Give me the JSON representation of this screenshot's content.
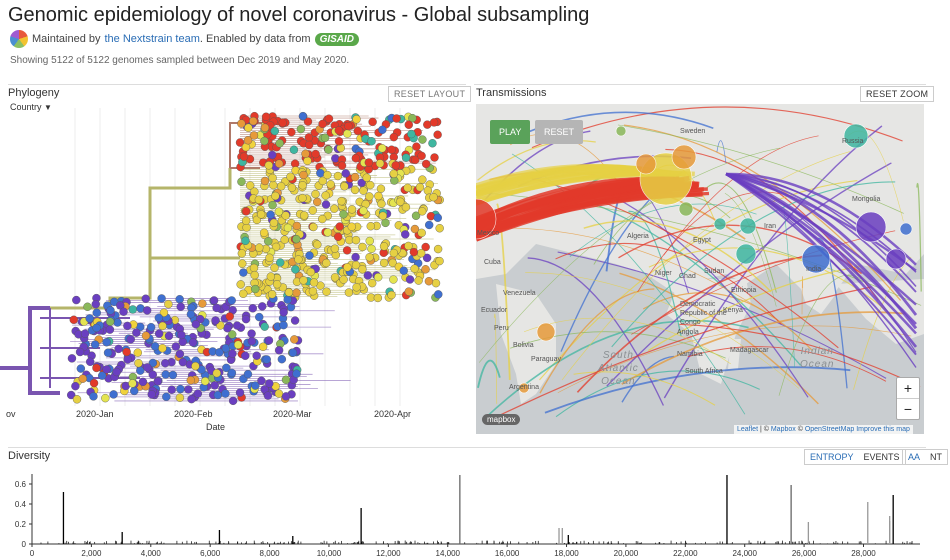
{
  "header": {
    "title": "Genomic epidemiology of novel coronavirus - Global subsampling",
    "maintained_prefix": "Maintained by",
    "maintainer_link": "the Nextstrain team",
    "enabled_text": ". Enabled by data from",
    "gisaid": "GISAID",
    "showing": "Showing 5122 of 5122 genomes sampled between Dec 2019 and May 2020."
  },
  "phylogeny": {
    "title": "Phylogeny",
    "reset_layout": "RESET LAYOUT",
    "color_by": "Country",
    "x_ticks": [
      "2020-Jan",
      "2020-Feb",
      "2020-Mar",
      "2020-Apr"
    ],
    "x_ticks_partial": "ov",
    "x_label": "Date"
  },
  "transmissions": {
    "title": "Transmissions",
    "reset_zoom": "RESET ZOOM",
    "play": "PLAY",
    "reset": "RESET",
    "zoom_in": "+",
    "zoom_out": "−",
    "attribution": {
      "leaflet": "Leaflet",
      "sep1": " | © ",
      "mapbox": "Mapbox",
      "sep2": " © ",
      "osm": "OpenStreetMap",
      "improve": "Improve this map"
    },
    "mapbox_logo": "mapbox",
    "oceans": {
      "south_atlantic": "South\nAtlantic\nOcean",
      "indian": "Indian\nOcean"
    },
    "place_labels": [
      "Sweden",
      "Russia",
      "Cuba",
      "Venezuela",
      "Ecuador",
      "Peru",
      "Bolivia",
      "Paraguay",
      "Argentina",
      "Angola",
      "Namibia",
      "South Africa",
      "Madagascar",
      "Kenya",
      "Democratic Republic of the Congo",
      "Mongolia",
      "Iran",
      "Egypt",
      "Algeria",
      "Niger",
      "Chad",
      "Sudan",
      "Ethiopia",
      "India",
      "Mexico"
    ],
    "colors": {
      "red": "#e23a2a",
      "yellow": "#e6d043",
      "green": "#8ab85a",
      "teal": "#3fb6a0",
      "blue": "#3f6fd0",
      "purple": "#6a3fc0",
      "orange": "#e69a3a"
    }
  },
  "diversity": {
    "title": "Diversity",
    "entropy": "ENTROPY",
    "events": "EVENTS",
    "aa": "AA",
    "nt": "NT",
    "y_ticks": [
      "0.6",
      "0.4",
      "0.2",
      "0"
    ],
    "x_ticks": [
      "0",
      "2,000",
      "4,000",
      "6,000",
      "8,000",
      "10,000",
      "12,000",
      "14,000",
      "16,000",
      "18,000",
      "20,000",
      "22,000",
      "24,000",
      "26,000",
      "28,000"
    ],
    "peaks": [
      {
        "pos": 1059,
        "value": 0.52,
        "c": "#000"
      },
      {
        "pos": 3037,
        "value": 0.12,
        "c": "#000"
      },
      {
        "pos": 6312,
        "value": 0.14,
        "c": "#000"
      },
      {
        "pos": 8782,
        "value": 0.08,
        "c": "#000"
      },
      {
        "pos": 11083,
        "value": 0.36,
        "c": "#000"
      },
      {
        "pos": 14408,
        "value": 0.69,
        "c": "#666"
      },
      {
        "pos": 17747,
        "value": 0.16,
        "c": "#999"
      },
      {
        "pos": 17858,
        "value": 0.16,
        "c": "#999"
      },
      {
        "pos": 18060,
        "value": 0.09,
        "c": "#000"
      },
      {
        "pos": 23403,
        "value": 0.69,
        "c": "#000"
      },
      {
        "pos": 25563,
        "value": 0.59,
        "c": "#666"
      },
      {
        "pos": 26144,
        "value": 0.22,
        "c": "#999"
      },
      {
        "pos": 28144,
        "value": 0.42,
        "c": "#999"
      },
      {
        "pos": 28881,
        "value": 0.23,
        "c": "#999"
      },
      {
        "pos": 28882,
        "value": 0.28,
        "c": "#999"
      },
      {
        "pos": 29000,
        "value": 0.49,
        "c": "#000"
      }
    ]
  }
}
